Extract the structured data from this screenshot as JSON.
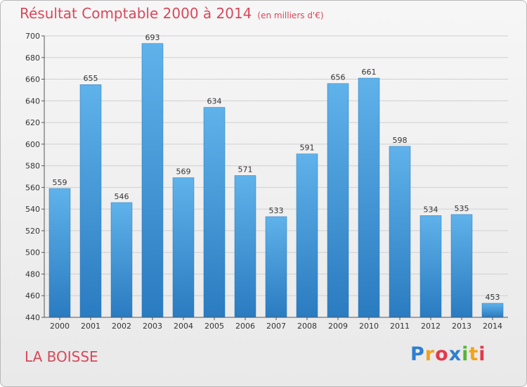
{
  "chart_data": {
    "type": "bar",
    "title": "Résultat Comptable 2000 à 2014",
    "subtitle": "(en milliers d'€)",
    "categories": [
      "2000",
      "2001",
      "2002",
      "2003",
      "2004",
      "2005",
      "2006",
      "2007",
      "2008",
      "2009",
      "2010",
      "2011",
      "2012",
      "2013",
      "2014"
    ],
    "values": [
      559,
      655,
      546,
      693,
      569,
      634,
      571,
      533,
      591,
      656,
      661,
      598,
      534,
      535,
      453
    ],
    "ylim": [
      440,
      700
    ],
    "yticks": [
      440,
      460,
      480,
      500,
      520,
      540,
      560,
      580,
      600,
      620,
      640,
      660,
      680,
      700
    ],
    "grid": true,
    "colors": {
      "bar": "#3a93d6",
      "title": "#d8485a"
    }
  },
  "place": "LA BOISSE",
  "logo": {
    "letters": [
      "P",
      "r",
      "o",
      "x",
      "i",
      "t",
      "i"
    ],
    "colors": [
      "#2d7fd1",
      "#f3a21b",
      "#e23a4b",
      "#2d7fd1",
      "#56b33a",
      "#f3a21b",
      "#e23a4b"
    ]
  }
}
